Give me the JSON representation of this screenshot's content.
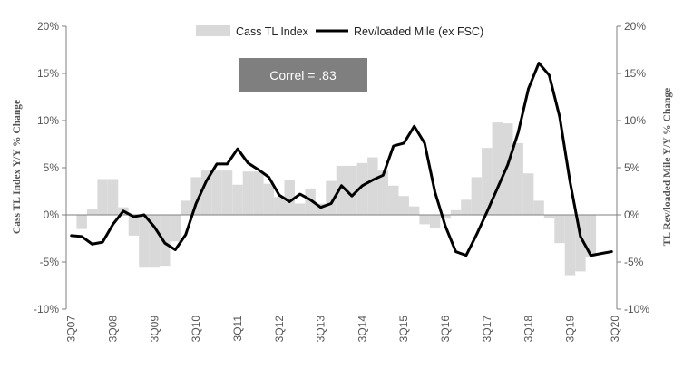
{
  "chart_data": {
    "type": "bar+line",
    "title": "",
    "x_tick_labels": [
      "3Q07",
      "3Q08",
      "3Q09",
      "3Q10",
      "3Q11",
      "3Q12",
      "3Q13",
      "3Q14",
      "3Q15",
      "3Q16",
      "3Q17",
      "3Q18",
      "3Q19",
      "3Q20"
    ],
    "left_axis": {
      "label": "Cass TL Index Y/Y % Change",
      "range": [
        -10,
        20
      ],
      "ticks": [
        -10,
        -5,
        0,
        5,
        10,
        15,
        20
      ],
      "tick_labels": [
        "-10%",
        "-5%",
        "0%",
        "5%",
        "10%",
        "15%",
        "20%"
      ]
    },
    "right_axis": {
      "label": "TL Rev/loaded Mile Y/Y % Change",
      "range": [
        -10,
        20
      ],
      "ticks": [
        -10,
        -5,
        0,
        5,
        10,
        15,
        20
      ],
      "tick_labels": [
        "-10%",
        "-5%",
        "0%",
        "5%",
        "10%",
        "15%",
        "20%"
      ]
    },
    "legend": {
      "placement": "top-center",
      "entries": [
        "Cass TL Index",
        "Rev/loaded Mile (ex FSC)"
      ]
    },
    "annotation": "Correl = .83",
    "series": [
      {
        "name": "Cass TL Index",
        "kind": "bar",
        "color": "#d9d9d9",
        "values": [
          -1.5,
          0.6,
          3.8,
          3.8,
          0.8,
          -2.2,
          -5.6,
          -5.6,
          -5.4,
          -2.8,
          1.5,
          4.0,
          4.7,
          4.7,
          4.7,
          3.2,
          4.6,
          4.6,
          3.3,
          1.9,
          3.7,
          1.2,
          2.8,
          1.2,
          3.6,
          5.2,
          5.2,
          5.5,
          6.1,
          4.7,
          3.1,
          2.0,
          0.9,
          -1.0,
          -1.4,
          -0.4,
          0.5,
          1.6,
          4.0,
          7.1,
          9.8,
          9.7,
          7.6,
          4.4,
          1.5,
          -0.4,
          -3.0,
          -6.4,
          -6.0,
          -4.5
        ]
      },
      {
        "name": "Rev/loaded Mile (ex FSC)",
        "kind": "line",
        "color": "#000000",
        "values": [
          -2.2,
          -2.3,
          -3.1,
          -2.9,
          -1.0,
          0.4,
          -0.2,
          0.0,
          -1.3,
          -3.0,
          -3.7,
          -2.1,
          1.2,
          3.6,
          5.4,
          5.4,
          7.0,
          5.5,
          4.8,
          4.0,
          2.1,
          1.4,
          2.2,
          1.6,
          0.8,
          1.2,
          3.1,
          2.0,
          3.1,
          3.7,
          4.2,
          7.3,
          7.6,
          9.4,
          7.6,
          2.4,
          -1.2,
          -3.9,
          -4.3,
          -2.1,
          0.3,
          2.8,
          5.3,
          8.7,
          13.4,
          16.1,
          14.8,
          10.4,
          3.5,
          -2.3,
          -4.3,
          -4.1,
          -3.9
        ]
      }
    ]
  }
}
